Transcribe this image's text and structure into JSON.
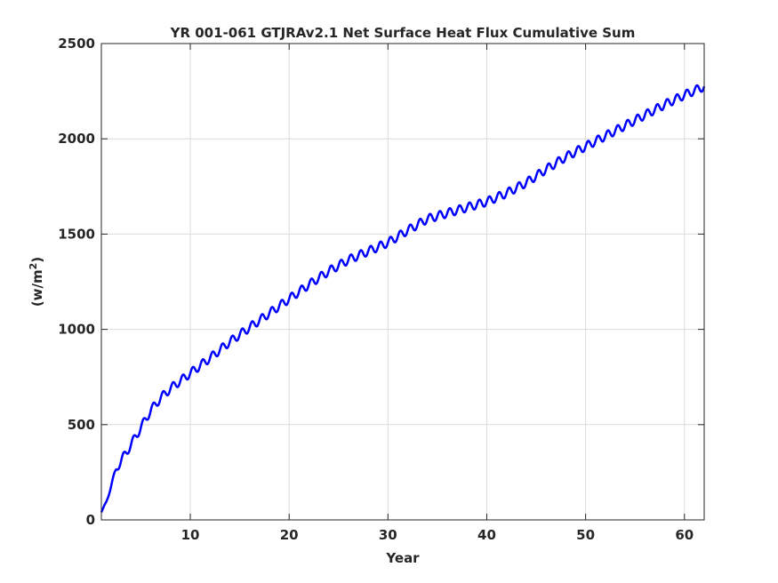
{
  "chart_data": {
    "type": "line",
    "title": "YR 001-061 GTJRAv2.1 Net Surface Heat Flux  Cumulative Sum",
    "xlabel": "Year",
    "ylabel_main": "(w/m",
    "ylabel_sup": "2",
    "ylabel_close": ")",
    "xlim": [
      1,
      62
    ],
    "ylim": [
      0,
      2500
    ],
    "xticks": [
      10,
      20,
      30,
      40,
      50,
      60
    ],
    "xtick_labels": [
      "10",
      "20",
      "30",
      "40",
      "50",
      "60"
    ],
    "yticks": [
      0,
      500,
      1000,
      1500,
      2000,
      2500
    ],
    "ytick_labels": [
      "0",
      "500",
      "1000",
      "1500",
      "2000",
      "2500"
    ],
    "grid": true,
    "line_color": "#0000ff",
    "series": [
      {
        "trend_x": [
          1,
          1.5,
          2,
          2.5,
          3,
          4,
          5,
          6,
          7,
          8,
          9,
          10,
          12,
          14,
          16,
          18,
          20,
          22,
          24,
          26,
          28,
          30,
          32,
          34,
          36,
          38,
          40,
          42,
          44,
          46,
          48,
          50,
          52,
          54,
          56,
          58,
          60,
          62
        ],
        "trend_y": [
          40,
          95,
          180,
          265,
          310,
          395,
          485,
          575,
          640,
          690,
          730,
          770,
          850,
          935,
          1010,
          1085,
          1160,
          1235,
          1305,
          1365,
          1410,
          1455,
          1520,
          1580,
          1610,
          1640,
          1670,
          1715,
          1770,
          1840,
          1905,
          1960,
          2015,
          2070,
          2125,
          2180,
          2230,
          2275
        ],
        "seasonal_amplitude": 22,
        "period_years": 1
      }
    ]
  }
}
